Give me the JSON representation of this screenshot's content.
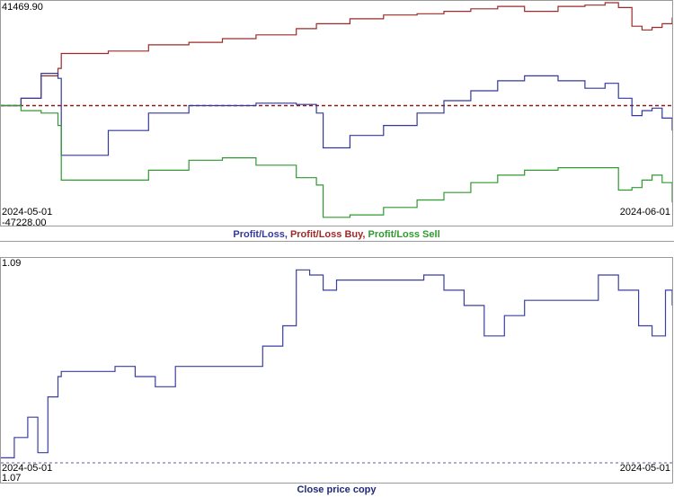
{
  "colors": {
    "profit_loss": "#34389a",
    "profit_loss_buy": "#9e2a2a",
    "profit_loss_sell": "#2f9a2f",
    "close_price": "#3a3fa0",
    "zero_line": "#8b1a1a",
    "bottom_dash": "#5a5aa8"
  },
  "top_panel": {
    "y_max_label": "41469.90",
    "y_min_label": "-47228.00",
    "x_start_label": "2024-05-01",
    "x_end_label": "2024-06-01",
    "legend": {
      "profit_loss": "Profit/Loss",
      "sep1": ", ",
      "profit_loss_buy": "Profit/Loss Buy",
      "sep2": ", ",
      "profit_loss_sell": "Profit/Loss Sell"
    }
  },
  "bottom_panel": {
    "y_max_label": "1.09",
    "y_min_label": "1.07",
    "x_start_label": "2024-05-01",
    "x_end_label": "2024-05-01",
    "caption": "Close price copy"
  },
  "chart_data": [
    {
      "type": "line",
      "title": "",
      "x_range": [
        "2024-05-01",
        "2024-06-01"
      ],
      "ylim": [
        -47228.0,
        41469.9
      ],
      "zero_line": 0,
      "series": [
        {
          "name": "Profit/Loss Buy",
          "color": "#9e2a2a",
          "x": [
            0,
            0.03,
            0.06,
            0.085,
            0.09,
            0.16,
            0.22,
            0.28,
            0.33,
            0.38,
            0.44,
            0.47,
            0.52,
            0.57,
            0.62,
            0.66,
            0.7,
            0.74,
            0.78,
            0.83,
            0.87,
            0.9,
            0.92,
            0.94,
            0.955,
            0.97,
            0.985,
            1.0
          ],
          "values": [
            0,
            3000,
            12000,
            15000,
            21000,
            22000,
            24500,
            25500,
            27000,
            28500,
            31000,
            33000,
            35000,
            36500,
            37000,
            38000,
            39000,
            40000,
            38000,
            40000,
            40500,
            41469.9,
            39500,
            32000,
            30500,
            31500,
            33000,
            35500
          ]
        },
        {
          "name": "Profit/Loss",
          "color": "#34389a",
          "x": [
            0,
            0.03,
            0.06,
            0.085,
            0.09,
            0.16,
            0.22,
            0.28,
            0.33,
            0.38,
            0.44,
            0.47,
            0.48,
            0.52,
            0.57,
            0.62,
            0.66,
            0.7,
            0.74,
            0.78,
            0.83,
            0.87,
            0.9,
            0.92,
            0.94,
            0.955,
            0.97,
            0.985,
            1.0
          ],
          "values": [
            0,
            3000,
            13000,
            11000,
            -20000,
            -10000,
            -3000,
            0,
            0,
            1000,
            500,
            -3000,
            -17000,
            -12000,
            -8000,
            -3000,
            2000,
            6000,
            10000,
            12000,
            10000,
            7000,
            9000,
            3000,
            -4000,
            -2000,
            -1000,
            -5000,
            -10000
          ]
        },
        {
          "name": "Profit/Loss Sell",
          "color": "#2f9a2f",
          "x": [
            0,
            0.03,
            0.06,
            0.085,
            0.09,
            0.16,
            0.22,
            0.28,
            0.33,
            0.38,
            0.44,
            0.47,
            0.48,
            0.52,
            0.57,
            0.62,
            0.66,
            0.7,
            0.74,
            0.78,
            0.83,
            0.87,
            0.9,
            0.92,
            0.94,
            0.955,
            0.97,
            0.985,
            1.0
          ],
          "values": [
            0,
            -2000,
            -3000,
            -8000,
            -30000,
            -30000,
            -26000,
            -22000,
            -21000,
            -24000,
            -29000,
            -32000,
            -45000,
            -44000,
            -41000,
            -38000,
            -35000,
            -31000,
            -28000,
            -26000,
            -25000,
            -25000,
            -25000,
            -34000,
            -33000,
            -30000,
            -28000,
            -31000,
            -39000
          ]
        }
      ]
    },
    {
      "type": "line",
      "title": "",
      "x_range": [
        "2024-05-01",
        "2024-05-01"
      ],
      "ylim": [
        1.07,
        1.09
      ],
      "series": [
        {
          "name": "Close price copy",
          "color": "#3a3fa0",
          "x": [
            0,
            0.02,
            0.04,
            0.055,
            0.07,
            0.085,
            0.09,
            0.13,
            0.17,
            0.2,
            0.23,
            0.26,
            0.28,
            0.3,
            0.33,
            0.36,
            0.39,
            0.42,
            0.44,
            0.46,
            0.48,
            0.5,
            0.53,
            0.55,
            0.6,
            0.63,
            0.66,
            0.69,
            0.72,
            0.75,
            0.78,
            0.81,
            0.84,
            0.87,
            0.89,
            0.92,
            0.95,
            0.97,
            0.99,
            1.0
          ],
          "values": [
            1.0705,
            1.0725,
            1.0745,
            1.071,
            1.0765,
            1.0785,
            1.079,
            1.079,
            1.0795,
            1.0785,
            1.0775,
            1.0795,
            1.0795,
            1.0795,
            1.0795,
            1.0795,
            1.0815,
            1.0835,
            1.089,
            1.0885,
            1.087,
            1.088,
            1.088,
            1.088,
            1.088,
            1.0885,
            1.087,
            1.0855,
            1.0825,
            1.0845,
            1.086,
            1.086,
            1.086,
            1.086,
            1.0885,
            1.087,
            1.0835,
            1.0825,
            1.087,
            1.0855
          ]
        }
      ]
    }
  ]
}
